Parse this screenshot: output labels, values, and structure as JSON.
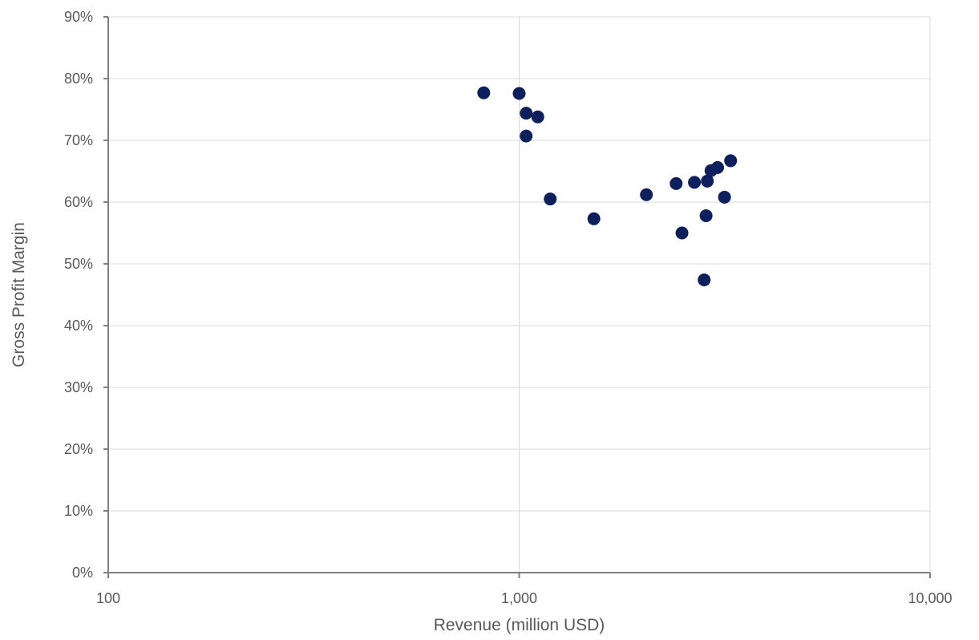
{
  "chart_data": {
    "type": "scatter",
    "xlabel": "Revenue (million USD)",
    "ylabel": "Gross Profit Margin",
    "x_scale": "log",
    "xlim": [
      100,
      10000
    ],
    "ylim": [
      0,
      0.9
    ],
    "x_ticks": [
      100,
      1000,
      10000
    ],
    "x_tick_labels": [
      "100",
      "1,000",
      "10,000"
    ],
    "y_ticks": [
      0,
      0.1,
      0.2,
      0.3,
      0.4,
      0.5,
      0.6,
      0.7,
      0.8,
      0.9
    ],
    "y_tick_labels": [
      "0%",
      "10%",
      "20%",
      "30%",
      "40%",
      "50%",
      "60%",
      "70%",
      "80%",
      "90%"
    ],
    "grid": true,
    "legend": "none",
    "marker_color": "#0d1f5c",
    "series": [
      {
        "points": [
          {
            "x": 820,
            "y": 0.777
          },
          {
            "x": 1000,
            "y": 0.776
          },
          {
            "x": 1040,
            "y": 0.744
          },
          {
            "x": 1110,
            "y": 0.738
          },
          {
            "x": 1040,
            "y": 0.707
          },
          {
            "x": 1190,
            "y": 0.605
          },
          {
            "x": 1520,
            "y": 0.573
          },
          {
            "x": 2040,
            "y": 0.612
          },
          {
            "x": 2410,
            "y": 0.63
          },
          {
            "x": 2670,
            "y": 0.632
          },
          {
            "x": 2870,
            "y": 0.634
          },
          {
            "x": 2930,
            "y": 0.651
          },
          {
            "x": 3040,
            "y": 0.656
          },
          {
            "x": 3270,
            "y": 0.667
          },
          {
            "x": 3160,
            "y": 0.608
          },
          {
            "x": 2850,
            "y": 0.578
          },
          {
            "x": 2490,
            "y": 0.55
          },
          {
            "x": 2820,
            "y": 0.474
          }
        ]
      }
    ]
  }
}
